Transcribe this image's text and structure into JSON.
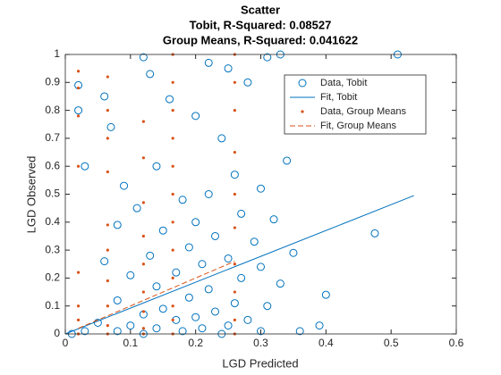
{
  "chart_data": {
    "type": "scatter",
    "title": [
      "Scatter",
      "Tobit, R-Squared: 0.08527",
      "Group Means, R-Squared: 0.041622"
    ],
    "xlabel": "LGD Predicted",
    "ylabel": "LGD Observed",
    "xlim": [
      0,
      0.6
    ],
    "ylim": [
      0,
      1
    ],
    "xticks": [
      0,
      0.1,
      0.2,
      0.3,
      0.4,
      0.5,
      0.6
    ],
    "yticks": [
      0,
      0.1,
      0.2,
      0.3,
      0.4,
      0.5,
      0.6,
      0.7,
      0.8,
      0.9,
      1
    ],
    "legend": "northeast",
    "series": [
      {
        "name": "Data, Tobit",
        "color": "#0072bd",
        "style": "circle",
        "x": [
          0.51,
          0.31,
          0.33,
          0.12,
          0.22,
          0.25,
          0.13,
          0.28,
          0.02,
          0.06,
          0.16,
          0.2,
          0.07,
          0.02,
          0.24,
          0.03,
          0.34,
          0.14,
          0.26,
          0.09,
          0.3,
          0.22,
          0.18,
          0.11,
          0.27,
          0.32,
          0.2,
          0.08,
          0.15,
          0.475,
          0.23,
          0.29,
          0.19,
          0.35,
          0.13,
          0.25,
          0.06,
          0.21,
          0.3,
          0.17,
          0.1,
          0.27,
          0.33,
          0.14,
          0.22,
          0.4,
          0.19,
          0.08,
          0.26,
          0.31,
          0.15,
          0.23,
          0.12,
          0.2,
          0.28,
          0.17,
          0.05,
          0.1,
          0.25,
          0.39,
          0.14,
          0.21,
          0.03,
          0.08,
          0.18,
          0.3,
          0.36,
          0.01,
          0.12,
          0.24
        ],
        "y": [
          1.0,
          0.99,
          1.0,
          0.99,
          0.97,
          0.95,
          0.93,
          0.9,
          0.89,
          0.85,
          0.84,
          0.78,
          0.74,
          0.8,
          0.7,
          0.6,
          0.62,
          0.6,
          0.57,
          0.53,
          0.52,
          0.5,
          0.48,
          0.45,
          0.43,
          0.41,
          0.4,
          0.39,
          0.37,
          0.36,
          0.35,
          0.33,
          0.31,
          0.29,
          0.28,
          0.27,
          0.26,
          0.25,
          0.24,
          0.22,
          0.21,
          0.2,
          0.18,
          0.17,
          0.16,
          0.14,
          0.13,
          0.12,
          0.11,
          0.1,
          0.09,
          0.08,
          0.07,
          0.06,
          0.05,
          0.05,
          0.04,
          0.03,
          0.03,
          0.03,
          0.02,
          0.02,
          0.01,
          0.01,
          0.01,
          0.01,
          0.01,
          0.0,
          0.0,
          0.0
        ]
      },
      {
        "name": "Fit, Tobit",
        "color": "#0072bd",
        "style": "line",
        "x": [
          0.0,
          0.535
        ],
        "y": [
          0.0,
          0.495
        ]
      },
      {
        "name": "Data, Group Means",
        "color": "#d95319",
        "style": "dot",
        "x": [
          0.02,
          0.02,
          0.02,
          0.02,
          0.02,
          0.02,
          0.02,
          0.02,
          0.065,
          0.065,
          0.065,
          0.065,
          0.065,
          0.065,
          0.065,
          0.065,
          0.065,
          0.065,
          0.12,
          0.12,
          0.12,
          0.12,
          0.12,
          0.12,
          0.12,
          0.12,
          0.12,
          0.165,
          0.165,
          0.165,
          0.165,
          0.165,
          0.165,
          0.165,
          0.165,
          0.165,
          0.165,
          0.165,
          0.165,
          0.26,
          0.26,
          0.26,
          0.26,
          0.26,
          0.26,
          0.26,
          0.26,
          0.26,
          0.26
        ],
        "y": [
          0.94,
          0.88,
          0.78,
          0.6,
          0.22,
          0.1,
          0.05,
          0.0,
          0.92,
          0.8,
          0.7,
          0.58,
          0.39,
          0.3,
          0.19,
          0.1,
          0.03,
          0.0,
          0.76,
          0.63,
          0.47,
          0.35,
          0.25,
          0.15,
          0.08,
          0.02,
          0.0,
          1.0,
          0.9,
          0.8,
          0.7,
          0.6,
          0.5,
          0.4,
          0.3,
          0.2,
          0.1,
          0.05,
          0.0,
          1.0,
          0.9,
          0.8,
          0.65,
          0.5,
          0.38,
          0.25,
          0.15,
          0.05,
          0.0
        ]
      },
      {
        "name": "Fit, Group Means",
        "color": "#d95319",
        "style": "dashed",
        "x": [
          0.02,
          0.26
        ],
        "y": [
          0.02,
          0.26
        ]
      }
    ]
  }
}
